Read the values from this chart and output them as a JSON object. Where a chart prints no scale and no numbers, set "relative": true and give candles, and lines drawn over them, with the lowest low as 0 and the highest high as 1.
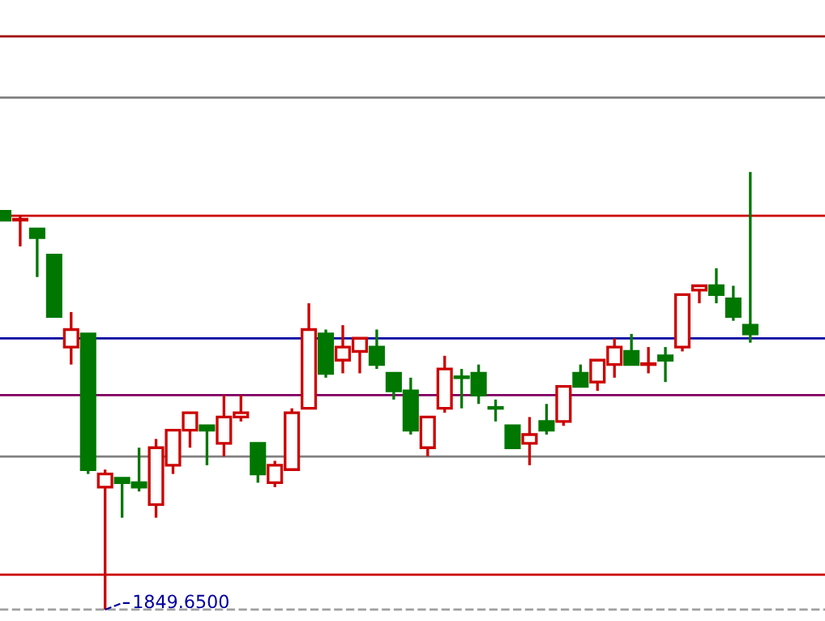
{
  "chart_data": {
    "type": "candlestick",
    "relative": true,
    "categories": [
      null,
      null,
      null,
      null,
      null,
      null,
      null,
      null,
      null,
      null,
      null,
      null,
      null,
      null,
      null,
      null,
      null,
      null,
      null,
      null,
      null,
      null,
      null,
      null,
      null,
      null,
      null,
      null,
      null,
      null,
      null,
      null,
      null,
      null,
      null,
      null,
      null,
      null,
      null,
      null,
      null,
      null,
      null,
      null,
      null
    ],
    "ohlc": [
      [
        0.91,
        0.91,
        0.89,
        0.89
      ],
      [
        0.89,
        0.9,
        0.83,
        0.89
      ],
      [
        0.87,
        0.87,
        0.76,
        0.85
      ],
      [
        0.81,
        0.81,
        0.67,
        0.67
      ],
      [
        0.6,
        0.68,
        0.56,
        0.64
      ],
      [
        0.63,
        0.63,
        0.31,
        0.32
      ],
      [
        0.28,
        0.32,
        0.0,
        0.31
      ],
      [
        0.3,
        0.3,
        0.21,
        0.29
      ],
      [
        0.29,
        0.37,
        0.27,
        0.28
      ],
      [
        0.24,
        0.39,
        0.21,
        0.37
      ],
      [
        0.33,
        0.41,
        0.31,
        0.41
      ],
      [
        0.41,
        0.45,
        0.37,
        0.45
      ],
      [
        0.42,
        0.42,
        0.33,
        0.41
      ],
      [
        0.38,
        0.49,
        0.35,
        0.44
      ],
      [
        0.44,
        0.49,
        0.43,
        0.45
      ],
      [
        0.38,
        0.38,
        0.29,
        0.31
      ],
      [
        0.29,
        0.34,
        0.28,
        0.33
      ],
      [
        0.32,
        0.46,
        0.32,
        0.45
      ],
      [
        0.46,
        0.7,
        0.46,
        0.64
      ],
      [
        0.63,
        0.64,
        0.53,
        0.54
      ],
      [
        0.57,
        0.65,
        0.54,
        0.6
      ],
      [
        0.59,
        0.62,
        0.54,
        0.62
      ],
      [
        0.6,
        0.64,
        0.55,
        0.56
      ],
      [
        0.54,
        0.54,
        0.48,
        0.5
      ],
      [
        0.5,
        0.53,
        0.4,
        0.41
      ],
      [
        0.37,
        0.44,
        0.35,
        0.44
      ],
      [
        0.46,
        0.58,
        0.45,
        0.55
      ],
      [
        0.53,
        0.55,
        0.46,
        0.53
      ],
      [
        0.54,
        0.56,
        0.47,
        0.49
      ],
      [
        0.46,
        0.48,
        0.43,
        0.46
      ],
      [
        0.42,
        0.42,
        0.37,
        0.37
      ],
      [
        0.38,
        0.44,
        0.33,
        0.4
      ],
      [
        0.43,
        0.47,
        0.4,
        0.41
      ],
      [
        0.43,
        0.51,
        0.42,
        0.51
      ],
      [
        0.54,
        0.56,
        0.51,
        0.51
      ],
      [
        0.52,
        0.57,
        0.5,
        0.57
      ],
      [
        0.56,
        0.62,
        0.53,
        0.6
      ],
      [
        0.59,
        0.63,
        0.56,
        0.56
      ],
      [
        0.56,
        0.6,
        0.54,
        0.56
      ],
      [
        0.58,
        0.6,
        0.52,
        0.57
      ],
      [
        0.6,
        0.72,
        0.59,
        0.72
      ],
      [
        0.73,
        0.74,
        0.7,
        0.74
      ],
      [
        0.74,
        0.78,
        0.7,
        0.72
      ],
      [
        0.71,
        0.74,
        0.66,
        0.67
      ],
      [
        0.65,
        1.0,
        0.61,
        0.63
      ]
    ],
    "colors": [
      "#007700",
      "#cc0000",
      "#007700",
      "#007700",
      "#cc0000",
      "#007700",
      "#cc0000",
      "#007700",
      "#007700",
      "#cc0000",
      "#cc0000",
      "#cc0000",
      "#007700",
      "#cc0000",
      "#cc0000",
      "#007700",
      "#cc0000",
      "#cc0000",
      "#cc0000",
      "#007700",
      "#cc0000",
      "#cc0000",
      "#007700",
      "#007700",
      "#007700",
      "#cc0000",
      "#cc0000",
      "#007700",
      "#007700",
      "#007700",
      "#007700",
      "#cc0000",
      "#007700",
      "#cc0000",
      "#007700",
      "#cc0000",
      "#cc0000",
      "#007700",
      "#cc0000",
      "#007700",
      "#cc0000",
      "#cc0000",
      "#007700",
      "#007700",
      "#007700"
    ],
    "ref_lines": [
      {
        "axis": "y",
        "value": 1.31,
        "color": "#a00000"
      },
      {
        "axis": "y",
        "value": 1.17,
        "color": "#808080"
      },
      {
        "axis": "y",
        "value": 0.9,
        "color": "#cc0000"
      },
      {
        "axis": "y",
        "value": 0.62,
        "color": "#0000a0"
      },
      {
        "axis": "y",
        "value": 0.49,
        "color": "#800060"
      },
      {
        "axis": "y",
        "value": 0.35,
        "color": "#808080"
      },
      {
        "axis": "y",
        "value": 0.08,
        "color": "#cc0000"
      },
      {
        "axis": "y",
        "value": 0.0,
        "color": "#a0a0a0",
        "line_style": "dashed"
      }
    ],
    "annotations": [
      "1849.6500"
    ]
  }
}
